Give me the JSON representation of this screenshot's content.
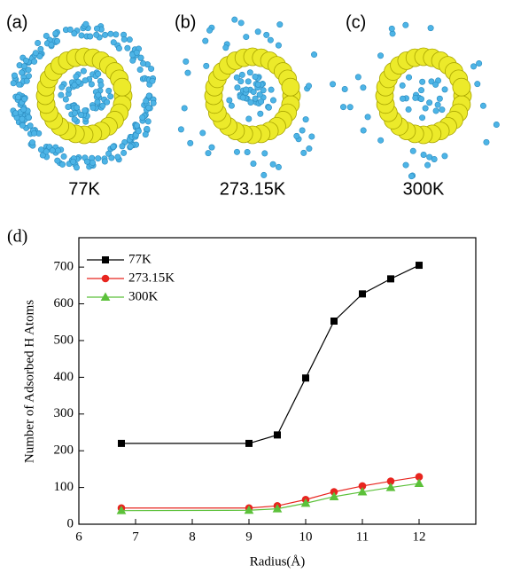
{
  "panels": [
    {
      "label": "(a)",
      "caption": "77K"
    },
    {
      "label": "(b)",
      "caption": "273.15K"
    },
    {
      "label": "(c)",
      "caption": "300K"
    }
  ],
  "chart_data": {
    "type": "line",
    "panel_label": "(d)",
    "x_label": "Radius(Å)",
    "y_label": "Number of Adsorbed H Atoms",
    "x": [
      6.75,
      9,
      9.5,
      10,
      10.5,
      11,
      11.5,
      12
    ],
    "series": [
      {
        "name": "77K",
        "color": "#000000",
        "marker": "square",
        "values": [
          220,
          220,
          243,
          398,
          553,
          627,
          668,
          705
        ]
      },
      {
        "name": "273.15K",
        "color": "#e8251f",
        "marker": "circle",
        "values": [
          44,
          44,
          50,
          67,
          88,
          104,
          117,
          129
        ]
      },
      {
        "name": "300K",
        "color": "#5cc13a",
        "marker": "triangle",
        "values": [
          37,
          38,
          42,
          57,
          75,
          88,
          100,
          111
        ]
      }
    ],
    "xlim": [
      6,
      13
    ],
    "ylim": [
      0,
      780
    ],
    "xticks": [
      6,
      7,
      8,
      9,
      10,
      11,
      12
    ],
    "yticks": [
      0,
      100,
      200,
      300,
      400,
      500,
      600,
      700
    ],
    "legend": "upper left"
  }
}
